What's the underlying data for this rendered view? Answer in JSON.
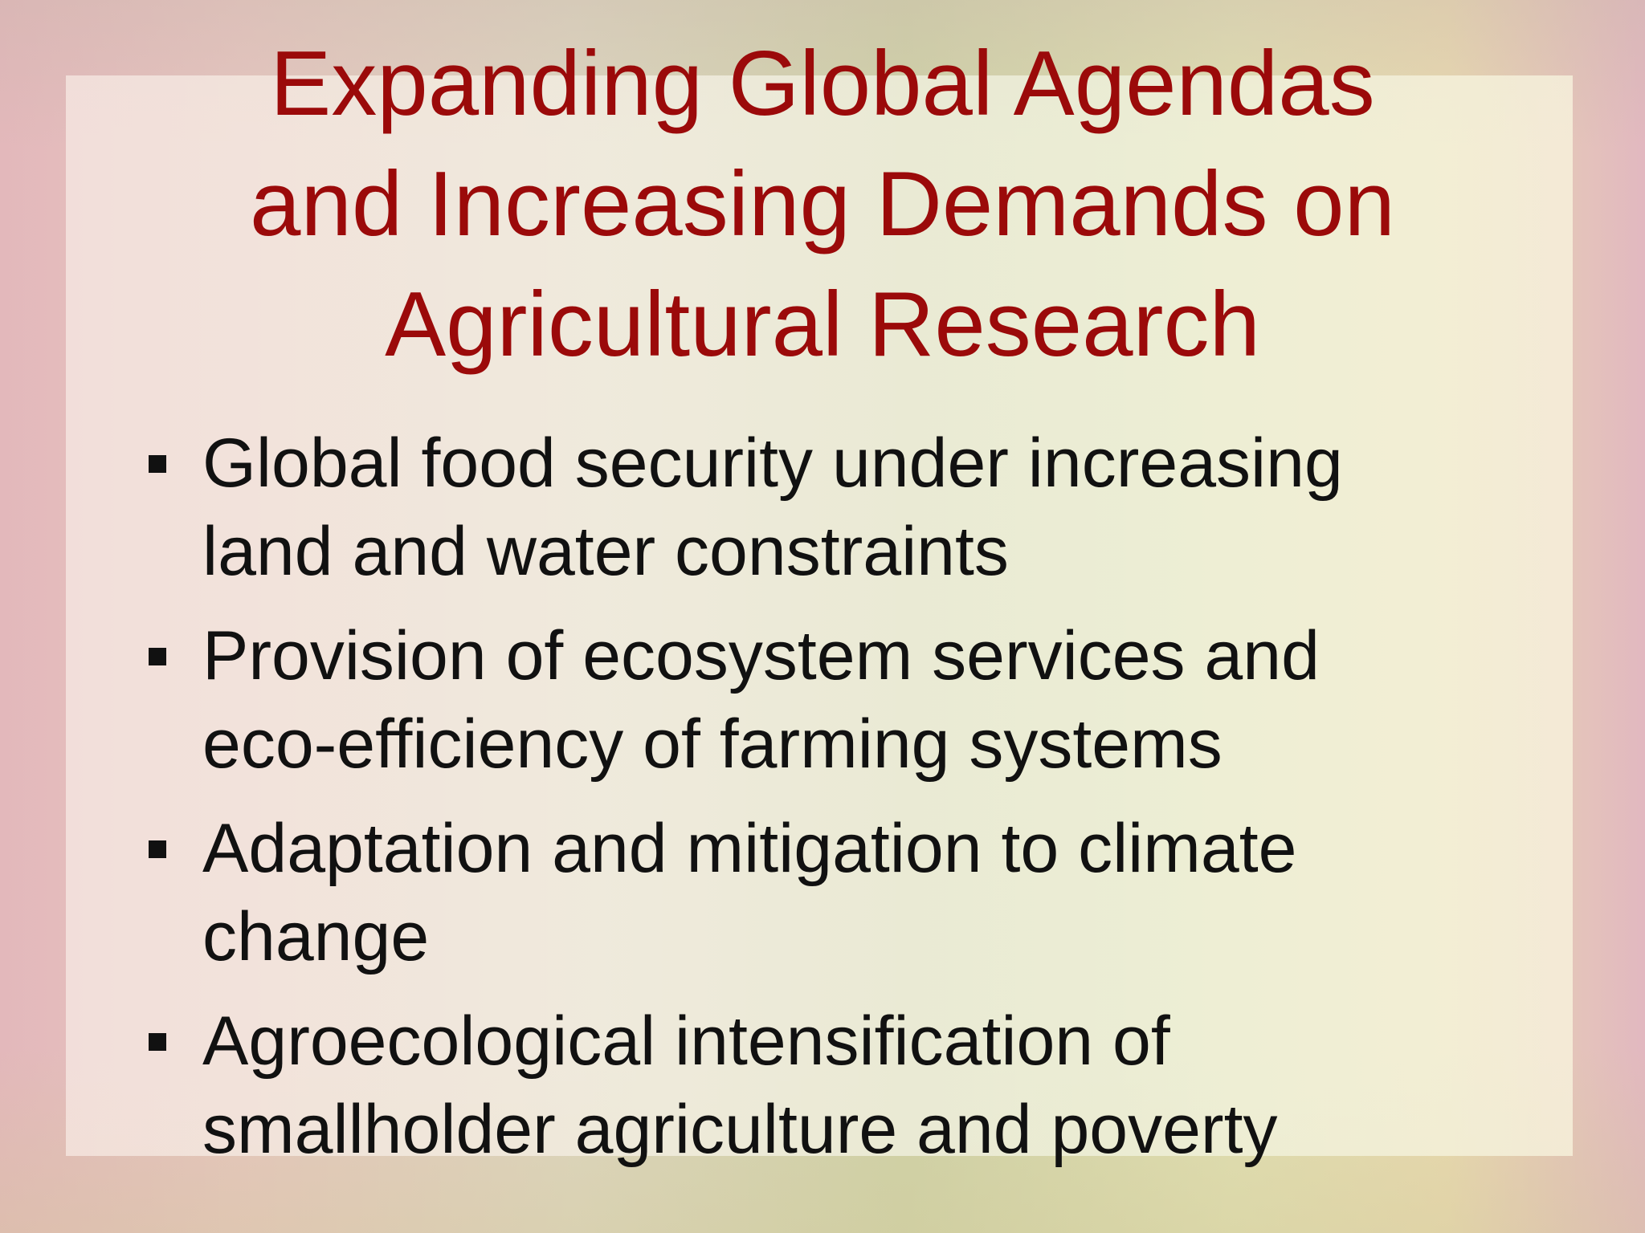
{
  "slide": {
    "title_lines": [
      "Expanding Global Agendas",
      "and Increasing Demands on",
      "Agricultural Research"
    ],
    "bullets": [
      {
        "lines": [
          "Global food security under increasing",
          "land and water constraints"
        ]
      },
      {
        "lines": [
          "Provision of ecosystem services and",
          "eco-efficiency of farming systems"
        ]
      },
      {
        "lines": [
          "Adaptation and mitigation to climate",
          "change"
        ]
      },
      {
        "lines": [
          "Agroecological intensification of",
          "smallholder agriculture and poverty"
        ]
      }
    ],
    "colors": {
      "title": "#9b0a0a",
      "body": "#111111"
    },
    "bullet_icon": "square-bullet"
  }
}
